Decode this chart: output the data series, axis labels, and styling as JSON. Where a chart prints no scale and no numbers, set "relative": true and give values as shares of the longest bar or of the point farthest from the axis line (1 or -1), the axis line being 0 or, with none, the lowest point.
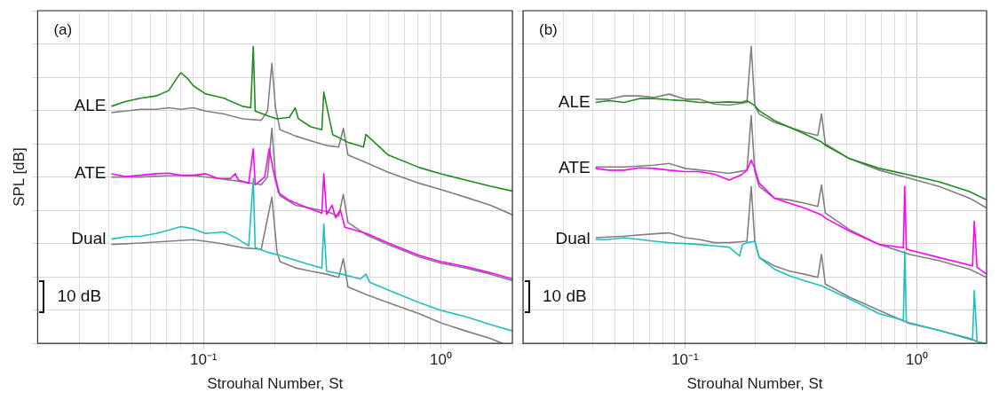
{
  "chart_data": [
    {
      "type": "line",
      "relative": true,
      "xlabel": "Strouhal Number, St",
      "ylabel": "SPL [dB]",
      "annotations": [
        "(a)",
        "10 dB"
      ],
      "xlim": [
        0.02,
        2
      ],
      "log": "x",
      "grid": true,
      "tick_labels": "x",
      "marker": "none",
      "xticks": [
        {
          "value": 0.02,
          "label": null
        },
        {
          "value": 0.03,
          "label": null
        },
        {
          "value": 0.04,
          "label": null
        },
        {
          "value": 0.05,
          "label": null
        },
        {
          "value": 0.06,
          "label": null
        },
        {
          "value": 0.07,
          "label": null
        },
        {
          "value": 0.08,
          "label": null
        },
        {
          "value": 0.09,
          "label": null
        },
        {
          "value": 0.1,
          "label": "10⁻¹"
        },
        {
          "value": 0.2,
          "label": null
        },
        {
          "value": 0.3,
          "label": null
        },
        {
          "value": 0.4,
          "label": null
        },
        {
          "value": 0.5,
          "label": null
        },
        {
          "value": 0.6,
          "label": null
        },
        {
          "value": 0.7,
          "label": null
        },
        {
          "value": 0.8,
          "label": null
        },
        {
          "value": 0.9,
          "label": null
        },
        {
          "value": 1,
          "label": "10⁰"
        },
        {
          "value": 2,
          "label": null
        }
      ],
      "series": [
        {
          "color": "#808080",
          "x": [
            0.0409,
            0.0468,
            0.0543,
            0.0632,
            0.0713,
            0.0803,
            0.0906,
            0.102,
            0.122,
            0.146,
            0.175,
            0.186,
            0.194,
            0.201,
            0.21,
            0.244,
            0.283,
            0.33,
            0.371,
            0.388,
            0.406,
            0.486,
            0.6,
            0.811,
            1,
            1.27,
            1.62,
            2
          ],
          "values": [
            0.777,
            0.782,
            0.788,
            0.788,
            0.793,
            0.788,
            0.793,
            0.782,
            0.772,
            0.756,
            0.751,
            0.782,
            0.943,
            0.793,
            0.719,
            0.698,
            0.682,
            0.666,
            0.661,
            0.724,
            0.634,
            0.608,
            0.576,
            0.539,
            0.518,
            0.492,
            0.465,
            0.433
          ]
        },
        {
          "name": "ALE",
          "color": "#1f8a1f",
          "x": [
            0.0409,
            0.0468,
            0.0543,
            0.0632,
            0.0713,
            0.078,
            0.0803,
            0.0853,
            0.0906,
            0.102,
            0.122,
            0.146,
            0.158,
            0.162,
            0.165,
            0.186,
            0.204,
            0.23,
            0.243,
            0.251,
            0.283,
            0.315,
            0.321,
            0.35,
            0.406,
            0.472,
            0.483,
            0.6,
            0.811,
            1,
            1.27,
            1.62,
            2
          ],
          "values": [
            0.798,
            0.814,
            0.825,
            0.833,
            0.851,
            0.898,
            0.911,
            0.893,
            0.867,
            0.84,
            0.825,
            0.798,
            0.793,
            1,
            0.782,
            0.766,
            0.756,
            0.761,
            0.793,
            0.756,
            0.729,
            0.719,
            0.846,
            0.703,
            0.677,
            0.661,
            0.703,
            0.634,
            0.592,
            0.571,
            0.55,
            0.529,
            0.513
          ]
        },
        {
          "color": "#808080",
          "x": [
            0.0409,
            0.0543,
            0.0713,
            0.0906,
            0.115,
            0.146,
            0.175,
            0.186,
            0.194,
            0.201,
            0.21,
            0.244,
            0.283,
            0.33,
            0.371,
            0.388,
            0.406,
            0.486,
            0.6,
            0.811,
            1,
            1.27,
            1.62,
            2
          ],
          "values": [
            0.56,
            0.56,
            0.565,
            0.565,
            0.555,
            0.544,
            0.534,
            0.56,
            0.724,
            0.56,
            0.497,
            0.465,
            0.455,
            0.444,
            0.428,
            0.502,
            0.407,
            0.365,
            0.333,
            0.291,
            0.27,
            0.254,
            0.233,
            0.211
          ]
        },
        {
          "name": "ATE",
          "color": "#ff00ff",
          "x": [
            0.0409,
            0.0468,
            0.0543,
            0.0632,
            0.0713,
            0.0803,
            0.0906,
            0.102,
            0.115,
            0.13,
            0.136,
            0.14,
            0.155,
            0.162,
            0.165,
            0.181,
            0.189,
            0.198,
            0.207,
            0.23,
            0.267,
            0.315,
            0.321,
            0.33,
            0.348,
            0.36,
            0.377,
            0.394,
            0.486,
            0.6,
            0.811,
            1,
            1.27,
            1.62,
            2
          ],
          "values": [
            0.571,
            0.562,
            0.566,
            0.571,
            0.573,
            0.566,
            0.566,
            0.571,
            0.555,
            0.555,
            0.571,
            0.55,
            0.539,
            0.655,
            0.534,
            0.56,
            0.655,
            0.571,
            0.507,
            0.481,
            0.46,
            0.439,
            0.571,
            0.434,
            0.465,
            0.423,
            0.449,
            0.391,
            0.37,
            0.338,
            0.296,
            0.275,
            0.259,
            0.238,
            0.217
          ]
        },
        {
          "color": "#808080",
          "x": [
            0.0409,
            0.0543,
            0.0713,
            0.0906,
            0.115,
            0.146,
            0.175,
            0.194,
            0.204,
            0.21,
            0.244,
            0.283,
            0.33,
            0.371,
            0.388,
            0.406,
            0.486,
            0.6,
            0.811,
            1,
            1.27,
            1.62,
            1.82
          ],
          "values": [
            0.333,
            0.338,
            0.344,
            0.349,
            0.338,
            0.322,
            0.317,
            0.492,
            0.307,
            0.275,
            0.254,
            0.243,
            0.233,
            0.222,
            0.285,
            0.19,
            0.164,
            0.137,
            0.1,
            0.069,
            0.042,
            0.016,
            0
          ]
        },
        {
          "name": "Dual",
          "color": "#1fbfbf",
          "x": [
            0.0409,
            0.0468,
            0.0543,
            0.0632,
            0.0713,
            0.0803,
            0.0906,
            0.102,
            0.122,
            0.138,
            0.155,
            0.162,
            0.165,
            0.186,
            0.21,
            0.244,
            0.283,
            0.315,
            0.321,
            0.33,
            0.383,
            0.458,
            0.483,
            0.501,
            0.6,
            0.811,
            1,
            1.27,
            1.62,
            2
          ],
          "values": [
            0.351,
            0.359,
            0.361,
            0.37,
            0.381,
            0.393,
            0.386,
            0.37,
            0.375,
            0.354,
            0.328,
            0.555,
            0.322,
            0.307,
            0.296,
            0.28,
            0.264,
            0.254,
            0.402,
            0.243,
            0.233,
            0.217,
            0.233,
            0.206,
            0.18,
            0.137,
            0.111,
            0.09,
            0.063,
            0.042
          ]
        }
      ]
    },
    {
      "type": "line",
      "relative": true,
      "xlabel": "Strouhal Number, St",
      "annotations": [
        "(b)",
        "10 dB"
      ],
      "xlim": [
        0.02,
        2
      ],
      "log": "x",
      "grid": true,
      "tick_labels": "x",
      "marker": "none",
      "xticks": [
        {
          "value": 0.02,
          "label": null
        },
        {
          "value": 0.03,
          "label": null
        },
        {
          "value": 0.04,
          "label": null
        },
        {
          "value": 0.05,
          "label": null
        },
        {
          "value": 0.06,
          "label": null
        },
        {
          "value": 0.07,
          "label": null
        },
        {
          "value": 0.08,
          "label": null
        },
        {
          "value": 0.09,
          "label": null
        },
        {
          "value": 0.1,
          "label": "10⁻¹"
        },
        {
          "value": 0.2,
          "label": null
        },
        {
          "value": 0.3,
          "label": null
        },
        {
          "value": 0.4,
          "label": null
        },
        {
          "value": 0.5,
          "label": null
        },
        {
          "value": 0.6,
          "label": null
        },
        {
          "value": 0.7,
          "label": null
        },
        {
          "value": 0.8,
          "label": null
        },
        {
          "value": 0.9,
          "label": null
        },
        {
          "value": 1,
          "label": "10⁰"
        },
        {
          "value": 2,
          "label": null
        }
      ],
      "series": [
        {
          "color": "#808080",
          "x": [
            0.0411,
            0.047,
            0.0546,
            0.0634,
            0.0736,
            0.0854,
            0.1,
            0.115,
            0.134,
            0.155,
            0.185,
            0.193,
            0.2,
            0.209,
            0.243,
            0.281,
            0.327,
            0.374,
            0.388,
            0.403,
            0.512,
            0.689,
            0.929,
            1.25,
            1.69,
            2
          ],
          "values": [
            0.822,
            0.822,
            0.833,
            0.833,
            0.828,
            0.839,
            0.822,
            0.822,
            0.806,
            0.802,
            0.811,
            1,
            0.8,
            0.772,
            0.744,
            0.728,
            0.711,
            0.7,
            0.772,
            0.672,
            0.622,
            0.583,
            0.556,
            0.528,
            0.489,
            0.456
          ]
        },
        {
          "name": "ALE",
          "color": "#1f8a1f",
          "x": [
            0.0411,
            0.047,
            0.0546,
            0.0634,
            0.0736,
            0.0854,
            0.1,
            0.115,
            0.134,
            0.155,
            0.175,
            0.185,
            0.2,
            0.209,
            0.243,
            0.281,
            0.327,
            0.388,
            0.403,
            0.512,
            0.689,
            0.929,
            1.25,
            1.69,
            2
          ],
          "values": [
            0.811,
            0.817,
            0.811,
            0.824,
            0.824,
            0.82,
            0.817,
            0.811,
            0.811,
            0.813,
            0.811,
            0.817,
            0.8,
            0.783,
            0.75,
            0.728,
            0.706,
            0.678,
            0.667,
            0.622,
            0.589,
            0.567,
            0.544,
            0.511,
            0.483
          ]
        },
        {
          "color": "#808080",
          "x": [
            0.0411,
            0.0546,
            0.0736,
            0.0854,
            0.1,
            0.134,
            0.155,
            0.185,
            0.193,
            0.2,
            0.209,
            0.243,
            0.281,
            0.327,
            0.374,
            0.388,
            0.403,
            0.512,
            0.689,
            0.929,
            1.25,
            1.69,
            2
          ],
          "values": [
            0.594,
            0.594,
            0.6,
            0.606,
            0.589,
            0.578,
            0.572,
            0.583,
            0.767,
            0.578,
            0.528,
            0.489,
            0.483,
            0.472,
            0.461,
            0.533,
            0.439,
            0.383,
            0.333,
            0.3,
            0.278,
            0.25,
            0.222
          ]
        },
        {
          "name": "ATE",
          "color": "#ff00ff",
          "x": [
            0.0411,
            0.047,
            0.0546,
            0.0634,
            0.0736,
            0.0854,
            0.1,
            0.115,
            0.134,
            0.155,
            0.175,
            0.185,
            0.193,
            0.2,
            0.209,
            0.243,
            0.281,
            0.327,
            0.388,
            0.403,
            0.512,
            0.689,
            0.875,
            0.887,
            0.901,
            1.25,
            1.74,
            1.77,
            1.82,
            2
          ],
          "values": [
            0.589,
            0.583,
            0.583,
            0.591,
            0.589,
            0.583,
            0.578,
            0.578,
            0.569,
            0.55,
            0.567,
            0.583,
            0.617,
            0.589,
            0.539,
            0.489,
            0.472,
            0.456,
            0.433,
            0.422,
            0.378,
            0.333,
            0.322,
            0.528,
            0.317,
            0.289,
            0.261,
            0.411,
            0.256,
            0.233
          ]
        },
        {
          "color": "#808080",
          "x": [
            0.0411,
            0.0546,
            0.0736,
            0.0854,
            0.1,
            0.115,
            0.134,
            0.155,
            0.185,
            0.193,
            0.2,
            0.209,
            0.243,
            0.281,
            0.327,
            0.374,
            0.388,
            0.403,
            0.512,
            0.689,
            0.929,
            1.25,
            1.69,
            1.9
          ],
          "values": [
            0.356,
            0.361,
            0.369,
            0.372,
            0.356,
            0.35,
            0.339,
            0.339,
            0.344,
            0.528,
            0.344,
            0.289,
            0.261,
            0.244,
            0.233,
            0.222,
            0.3,
            0.2,
            0.156,
            0.111,
            0.067,
            0.044,
            0.017,
            0
          ]
        },
        {
          "name": "Dual",
          "color": "#1fbfbf",
          "x": [
            0.0411,
            0.047,
            0.0546,
            0.0634,
            0.0736,
            0.0854,
            0.1,
            0.115,
            0.134,
            0.155,
            0.172,
            0.177,
            0.185,
            0.2,
            0.209,
            0.243,
            0.281,
            0.327,
            0.388,
            0.512,
            0.689,
            0.875,
            0.887,
            0.901,
            1.25,
            1.74,
            1.77,
            1.82,
            2
          ],
          "values": [
            0.35,
            0.35,
            0.356,
            0.35,
            0.344,
            0.339,
            0.336,
            0.333,
            0.328,
            0.324,
            0.294,
            0.333,
            0.339,
            0.344,
            0.289,
            0.25,
            0.228,
            0.211,
            0.194,
            0.15,
            0.1,
            0.078,
            0.311,
            0.072,
            0.044,
            0.011,
            0.178,
            0.006,
            0
          ]
        }
      ]
    }
  ]
}
